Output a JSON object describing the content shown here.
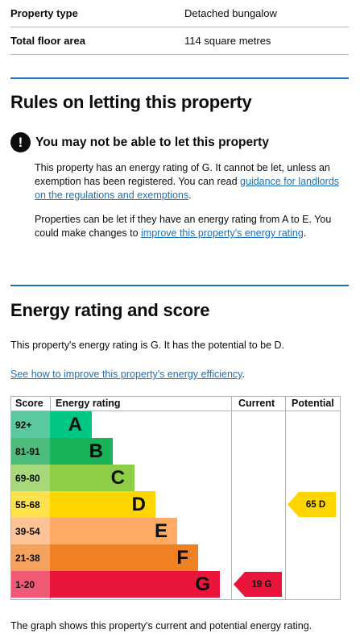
{
  "summary": [
    {
      "label": "Property type",
      "value": "Detached bungalow"
    },
    {
      "label": "Total floor area",
      "value": "114 square metres"
    }
  ],
  "letting": {
    "heading": "Rules on letting this property",
    "warning_icon": "!",
    "warning": "You may not be able to let this property",
    "p1_text": "This property has an energy rating of G. It cannot be let, unless an exemption has been registered. You can read ",
    "p1_link": "guidance for landlords on the regulations and exemptions",
    "p1_end": ".",
    "p2_text": "Properties can be let if they have an energy rating from A to E. You could make changes to ",
    "p2_link": "improve this property's energy rating",
    "p2_end": "."
  },
  "energy": {
    "heading": "Energy rating and score",
    "intro": "This property's energy rating is G. It has the potential to be D.",
    "improve_link": "See how to improve this property's energy efficiency",
    "improve_end": ".",
    "footer": "The graph shows this property's current and potential energy rating."
  },
  "chart_data": {
    "type": "table",
    "headers": {
      "score": "Score",
      "rating": "Energy rating",
      "current": "Current",
      "potential": "Potential"
    },
    "bands": [
      {
        "range": "92+",
        "letter": "A",
        "color": "#00c781"
      },
      {
        "range": "81-91",
        "letter": "B",
        "color": "#19b459"
      },
      {
        "range": "69-80",
        "letter": "C",
        "color": "#8dce46"
      },
      {
        "range": "55-68",
        "letter": "D",
        "color": "#ffd500"
      },
      {
        "range": "39-54",
        "letter": "E",
        "color": "#fcaa65"
      },
      {
        "range": "21-38",
        "letter": "F",
        "color": "#ef8023"
      },
      {
        "range": "1-20",
        "letter": "G",
        "color": "#e9153b"
      }
    ],
    "current": {
      "score": 19,
      "letter": "G",
      "label": "19 G"
    },
    "potential": {
      "score": 65,
      "letter": "D",
      "label": "65 D"
    }
  }
}
